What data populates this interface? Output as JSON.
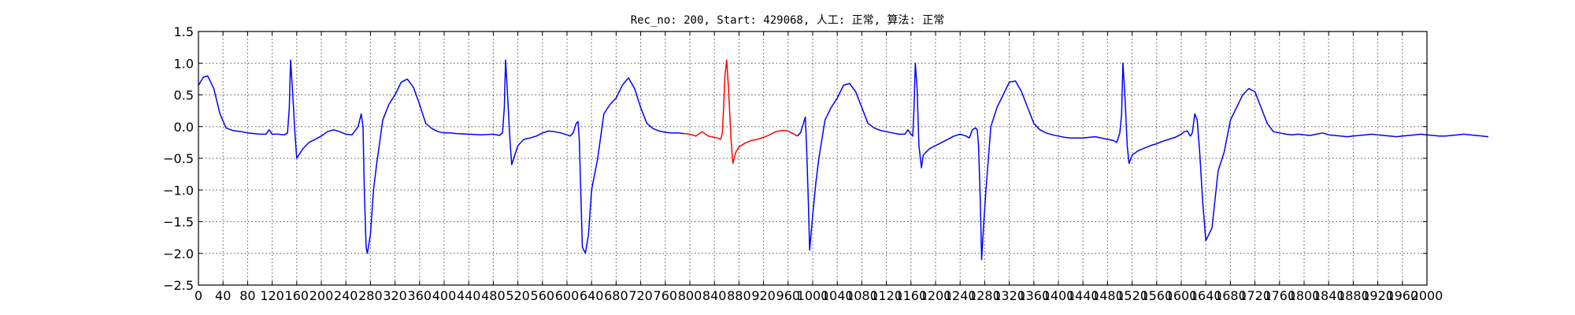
{
  "chart_data": {
    "type": "line",
    "title": "Rec_no: 200, Start: 429068, 人工: 正常, 算法: 正常",
    "xlabel": "",
    "ylabel": "",
    "xlim": [
      0,
      2000
    ],
    "ylim": [
      -2.5,
      1.5
    ],
    "x_ticks": [
      0,
      40,
      80,
      120,
      160,
      200,
      240,
      280,
      320,
      360,
      400,
      440,
      480,
      520,
      560,
      600,
      640,
      680,
      720,
      760,
      800,
      840,
      880,
      920,
      960,
      1000,
      1040,
      1080,
      1120,
      1160,
      1200,
      1240,
      1280,
      1320,
      1360,
      1400,
      1440,
      1480,
      1520,
      1560,
      1600,
      1640,
      1680,
      1720,
      1760,
      1800,
      1840,
      1880,
      1920,
      1960,
      2000
    ],
    "x_tick_labels": [
      "0",
      "40",
      "80",
      "120",
      "160",
      "200",
      "240",
      "280",
      "320",
      "360",
      "400",
      "440",
      "480",
      "520",
      "560",
      "600",
      "640",
      "680",
      "720",
      "760",
      "800",
      "840",
      "880",
      "920",
      "960",
      "1000",
      "1040",
      "1080",
      "1120",
      "1160",
      "1200",
      "1240",
      "1280",
      "1320",
      "1360",
      "1400",
      "1440",
      "1480",
      "1520",
      "1560",
      "1600",
      "1640",
      "1680",
      "1720",
      "1760",
      "1800",
      "1840",
      "1880",
      "1920",
      "1960",
      "2000"
    ],
    "y_ticks": [
      1.5,
      1.0,
      0.5,
      0.0,
      -0.5,
      -1.0,
      -1.5,
      -2.0,
      -2.5
    ],
    "y_tick_labels": [
      "1.5",
      "1.0",
      "0.5",
      "0.0",
      "−0.5",
      "−1.0",
      "−1.5",
      "−2.0",
      "−2.5"
    ],
    "grid": true,
    "colors": {
      "series": "#0000ff",
      "highlight": "#ff0000",
      "grid": "#555555"
    },
    "beats": [
      {
        "type": "normal",
        "r": 150,
        "highlight": false
      },
      {
        "type": "pvc",
        "s": 275,
        "highlight": false
      },
      {
        "type": "normal",
        "r": 500,
        "highlight": false
      },
      {
        "type": "pvc",
        "s": 625,
        "highlight": false
      },
      {
        "type": "normal",
        "r": 860,
        "highlight": true
      },
      {
        "type": "pvc",
        "s": 990,
        "highlight": false
      },
      {
        "type": "normal",
        "r": 1170,
        "highlight": false
      },
      {
        "type": "pvc",
        "s": 1300,
        "highlight": false
      },
      {
        "type": "normal",
        "r": 1505,
        "highlight": false
      },
      {
        "type": "pvc",
        "s": 1630,
        "highlight": false
      }
    ],
    "series": [
      {
        "x": [
          0,
          8,
          15,
          25,
          35,
          45,
          55,
          70,
          80,
          90,
          100,
          110,
          115,
          120,
          130,
          140,
          145,
          148,
          150,
          153,
          157,
          160,
          170,
          180,
          190,
          200,
          210,
          220,
          230,
          240,
          250,
          260,
          265,
          268,
          270,
          273,
          275,
          280,
          285,
          290,
          300,
          310,
          320,
          330,
          340,
          350,
          360,
          370,
          380,
          390,
          400,
          410,
          420,
          440,
          460,
          480,
          490,
          495,
          498,
          500,
          503,
          507,
          510,
          520,
          530,
          540,
          550,
          560,
          570,
          580,
          590,
          600,
          605,
          610,
          615,
          618,
          620,
          623,
          625,
          630,
          635,
          640,
          650,
          660,
          670,
          680,
          690,
          700,
          710,
          720,
          730,
          740,
          750,
          760,
          770,
          780,
          790
        ],
        "y": [
          0.65,
          0.78,
          0.8,
          0.6,
          0.2,
          -0.02,
          -0.06,
          -0.08,
          -0.1,
          -0.11,
          -0.12,
          -0.12,
          -0.05,
          -0.12,
          -0.12,
          -0.13,
          -0.1,
          0.3,
          1.05,
          0.6,
          -0.1,
          -0.5,
          -0.35,
          -0.25,
          -0.2,
          -0.15,
          -0.08,
          -0.05,
          -0.08,
          -0.12,
          -0.13,
          0.0,
          0.2,
          0.0,
          -1.0,
          -1.9,
          -2.0,
          -1.7,
          -1.0,
          -0.6,
          0.1,
          0.35,
          0.5,
          0.7,
          0.75,
          0.62,
          0.35,
          0.05,
          -0.03,
          -0.08,
          -0.1,
          -0.1,
          -0.11,
          -0.12,
          -0.13,
          -0.12,
          -0.14,
          -0.1,
          0.3,
          1.05,
          0.55,
          -0.2,
          -0.6,
          -0.3,
          -0.2,
          -0.18,
          -0.15,
          -0.1,
          -0.07,
          -0.08,
          -0.1,
          -0.13,
          -0.15,
          -0.1,
          0.05,
          0.08,
          -0.2,
          -1.2,
          -1.9,
          -2.0,
          -1.7,
          -1.0,
          -0.5,
          0.2,
          0.35,
          0.45,
          0.65,
          0.77,
          0.6,
          0.3,
          0.05,
          -0.03,
          -0.07,
          -0.09,
          -0.1,
          -0.1,
          -0.11
        ]
      },
      {
        "x": [
          790,
          800,
          810,
          820,
          830,
          840,
          845,
          850,
          853,
          855,
          857,
          860,
          863,
          867,
          870,
          875,
          880,
          890,
          900,
          910,
          920,
          930,
          940,
          950,
          960,
          970,
          975
        ],
        "y": [
          -0.11,
          -0.12,
          -0.15,
          -0.08,
          -0.15,
          -0.17,
          -0.18,
          -0.2,
          -0.1,
          0.3,
          0.8,
          1.05,
          0.6,
          -0.2,
          -0.58,
          -0.4,
          -0.32,
          -0.26,
          -0.22,
          -0.2,
          -0.17,
          -0.13,
          -0.08,
          -0.06,
          -0.07,
          -0.12,
          -0.15
        ],
        "highlight": true
      },
      {
        "x": [
          975,
          980,
          985,
          988,
          990,
          993,
          995,
          1000,
          1005,
          1010,
          1020,
          1030,
          1040,
          1050,
          1060,
          1070,
          1080,
          1090,
          1100,
          1110,
          1120,
          1130,
          1140,
          1150,
          1155,
          1160,
          1163,
          1165,
          1167,
          1170,
          1173,
          1177,
          1180,
          1190,
          1200,
          1210,
          1220,
          1230,
          1240,
          1250,
          1255,
          1260,
          1265,
          1268,
          1270,
          1273,
          1275,
          1278,
          1282,
          1286,
          1290,
          1300,
          1310,
          1320,
          1330,
          1340,
          1350,
          1360,
          1370,
          1380,
          1390,
          1400,
          1410,
          1420,
          1430,
          1440,
          1450,
          1460,
          1470,
          1480,
          1490,
          1495,
          1500,
          1503,
          1505,
          1508,
          1512,
          1515,
          1520,
          1530,
          1540,
          1550,
          1560,
          1570,
          1580,
          1590,
          1600,
          1605,
          1610,
          1613,
          1615,
          1618,
          1622,
          1626,
          1630,
          1635,
          1640,
          1650,
          1660,
          1670,
          1680,
          1690,
          1700,
          1710,
          1720,
          1730,
          1740,
          1750,
          1760,
          1770,
          1780,
          1790,
          1800,
          1810,
          1820,
          1830,
          1840,
          1850,
          1860,
          1870,
          1880,
          1890,
          1900,
          1910,
          1920,
          1930,
          1940,
          1950,
          1960,
          1970,
          1980,
          1990,
          2000,
          2010,
          2020,
          2030,
          2040,
          2050,
          2060,
          2070,
          2080,
          2090,
          2100
        ],
        "y": [
          -0.15,
          -0.1,
          0.05,
          0.15,
          -0.3,
          -1.2,
          -1.95,
          -1.4,
          -0.9,
          -0.5,
          0.1,
          0.3,
          0.45,
          0.65,
          0.68,
          0.55,
          0.3,
          0.05,
          -0.02,
          -0.06,
          -0.08,
          -0.1,
          -0.12,
          -0.12,
          -0.05,
          -0.12,
          -0.15,
          0.3,
          1.0,
          0.6,
          -0.3,
          -0.65,
          -0.45,
          -0.35,
          -0.3,
          -0.25,
          -0.2,
          -0.15,
          -0.12,
          -0.15,
          -0.18,
          -0.05,
          -0.02,
          -0.05,
          -0.3,
          -1.2,
          -2.1,
          -1.6,
          -1.0,
          -0.5,
          0.0,
          0.3,
          0.5,
          0.7,
          0.72,
          0.55,
          0.3,
          0.05,
          -0.05,
          -0.1,
          -0.13,
          -0.15,
          -0.17,
          -0.18,
          -0.18,
          -0.18,
          -0.17,
          -0.16,
          -0.18,
          -0.2,
          -0.22,
          -0.25,
          -0.1,
          0.2,
          1.0,
          0.55,
          -0.3,
          -0.58,
          -0.45,
          -0.38,
          -0.34,
          -0.3,
          -0.27,
          -0.23,
          -0.2,
          -0.17,
          -0.12,
          -0.08,
          -0.07,
          -0.12,
          -0.15,
          -0.1,
          0.2,
          0.1,
          -0.4,
          -1.2,
          -1.8,
          -1.6,
          -0.7,
          -0.4,
          0.1,
          0.3,
          0.5,
          0.6,
          0.55,
          0.3,
          0.05,
          -0.08,
          -0.1,
          -0.12,
          -0.13,
          -0.12,
          -0.13,
          -0.14,
          -0.12,
          -0.1,
          -0.13,
          -0.14,
          -0.15,
          -0.16,
          -0.15,
          -0.14,
          -0.13,
          -0.12,
          -0.13,
          -0.14,
          -0.15,
          -0.16,
          -0.15,
          -0.14,
          -0.13,
          -0.12,
          -0.13,
          -0.14,
          -0.15,
          -0.15,
          -0.14,
          -0.13,
          -0.12,
          -0.13,
          -0.14,
          -0.15,
          -0.16
        ]
      }
    ]
  }
}
